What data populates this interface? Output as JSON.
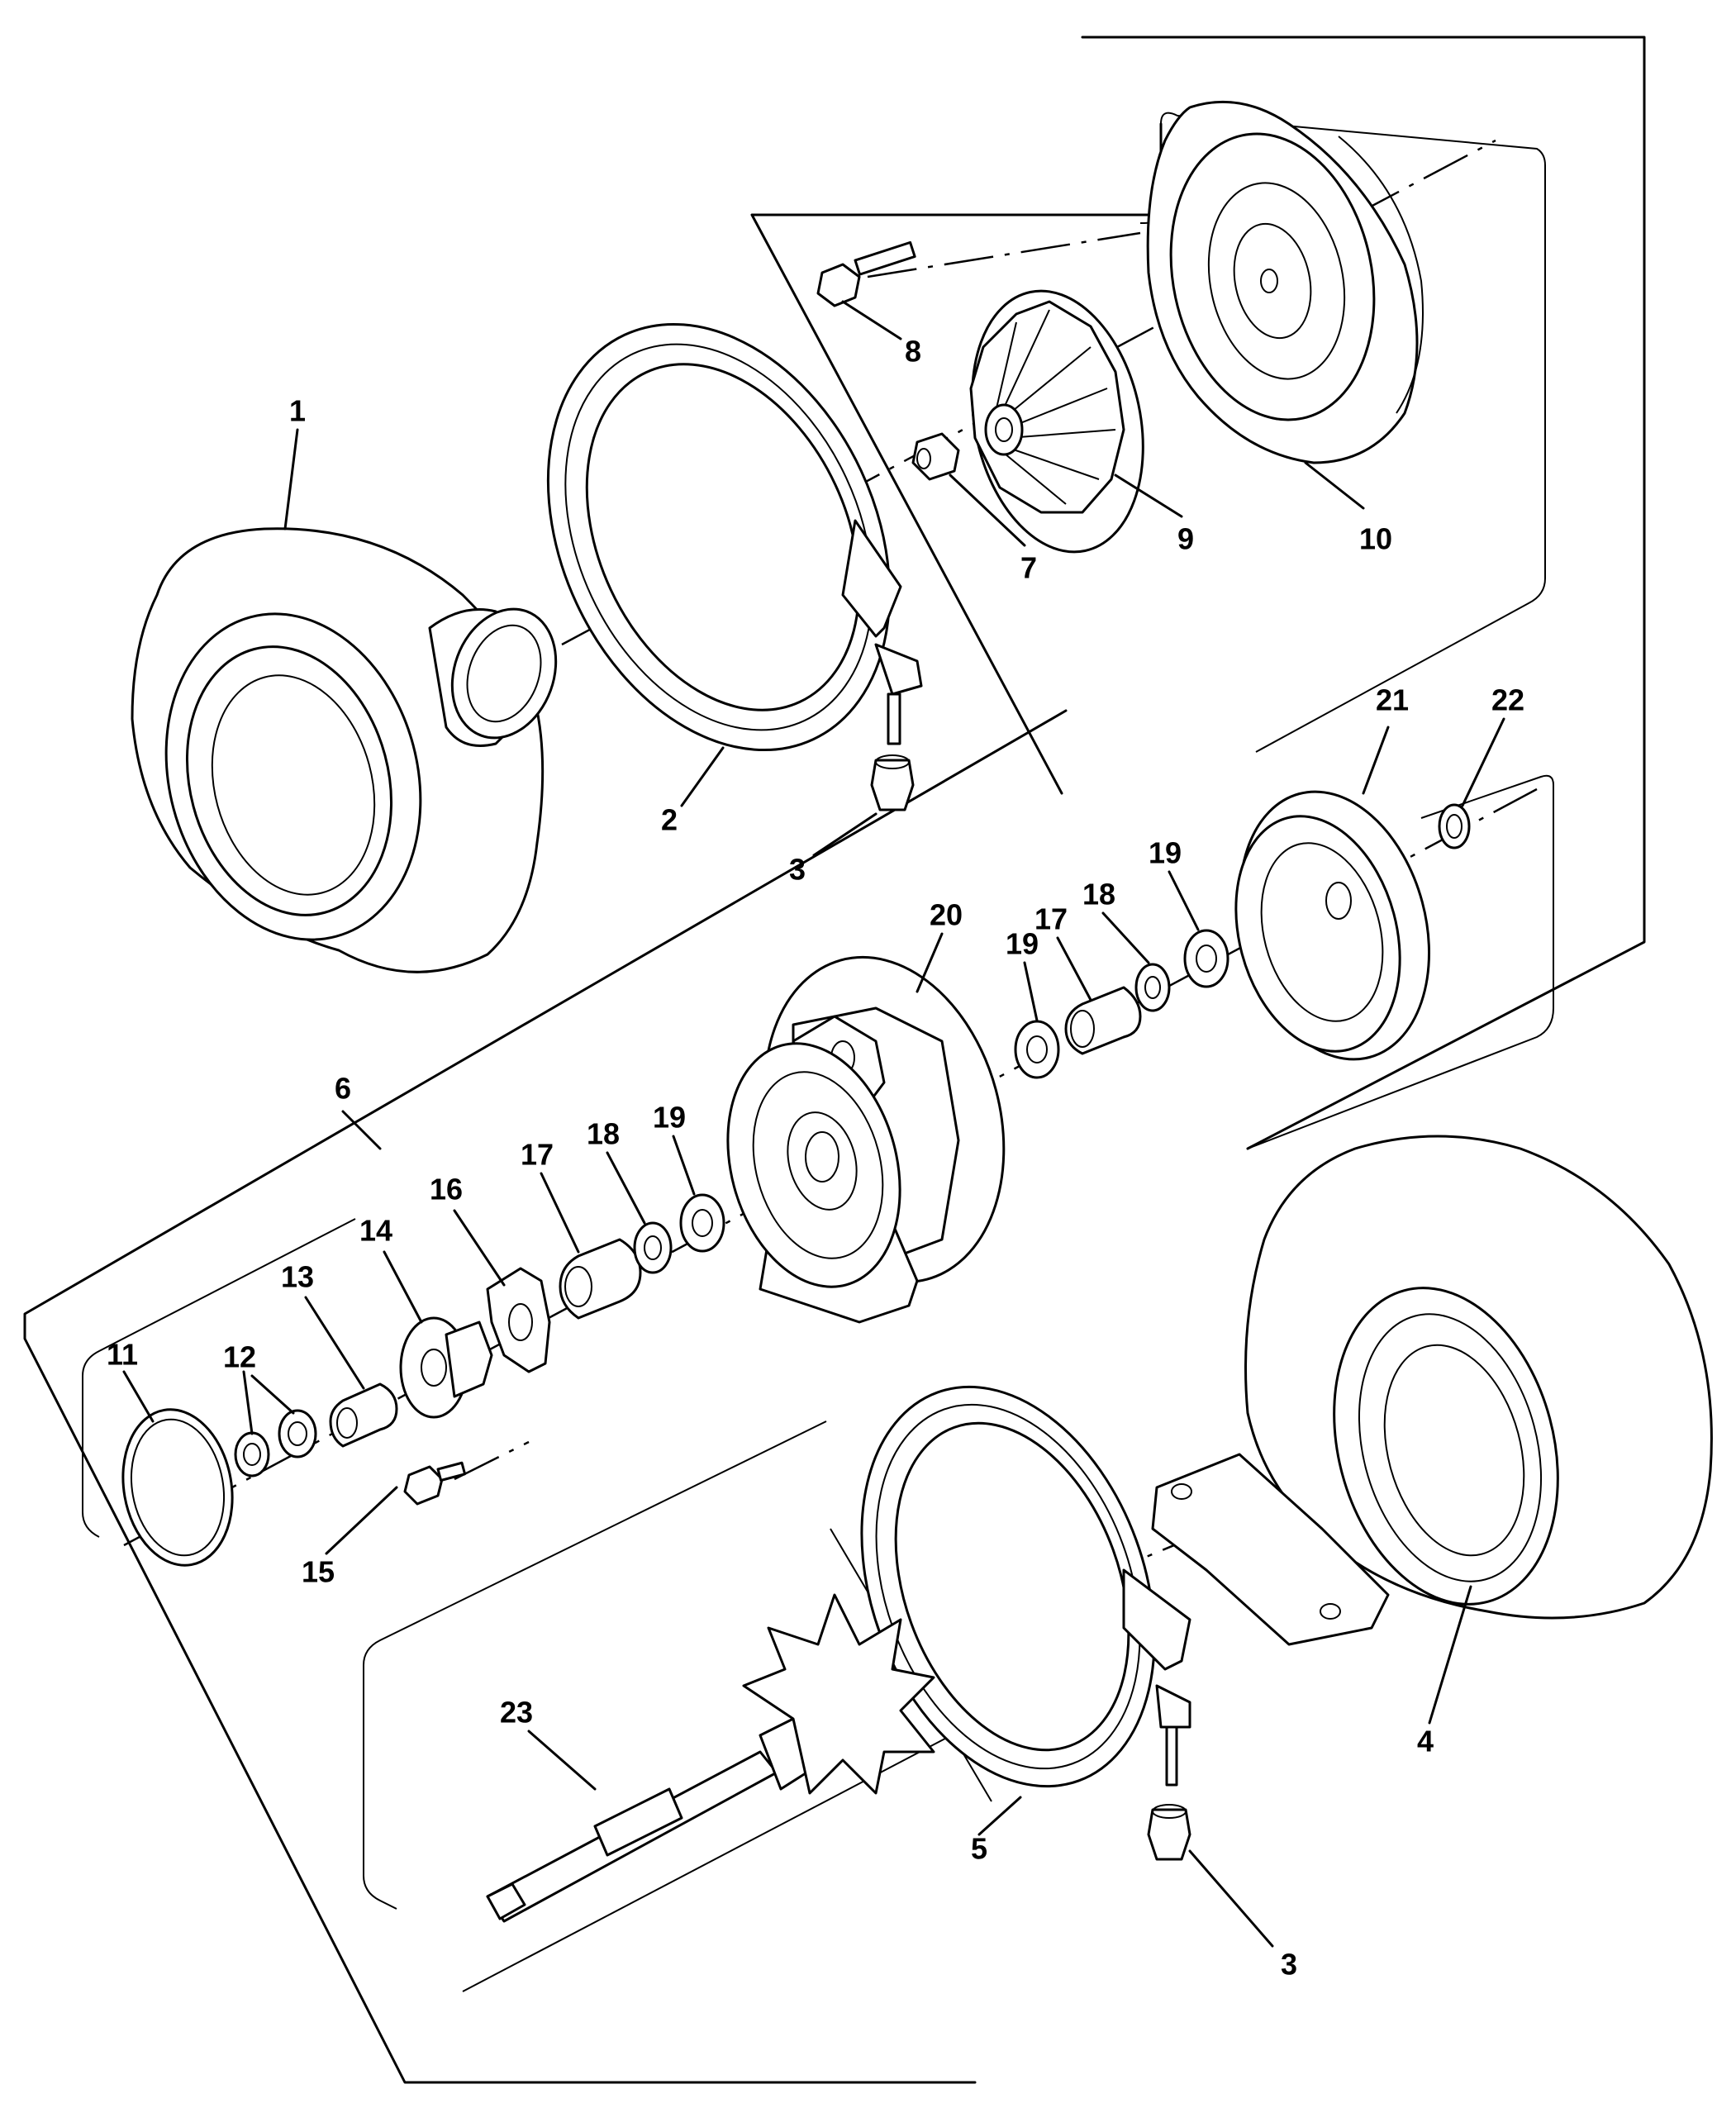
{
  "figure": {
    "type": "exploded-parts-diagram",
    "stroke_color": "#000000",
    "background_color": "#ffffff"
  },
  "labels": {
    "l1": "1",
    "l2": "2",
    "l3a": "3",
    "l3b": "3",
    "l4": "4",
    "l5": "5",
    "l6": "6",
    "l7": "7",
    "l8": "8",
    "l9": "9",
    "l10": "10",
    "l11": "11",
    "l12": "12",
    "l13": "13",
    "l14": "14",
    "l15": "15",
    "l16": "16",
    "l17a": "17",
    "l17b": "17",
    "l18a": "18",
    "l18b": "18",
    "l19a": "19",
    "l19b": "19",
    "l19c": "19",
    "l20": "20",
    "l21": "21",
    "l22": "22",
    "l23": "23"
  }
}
